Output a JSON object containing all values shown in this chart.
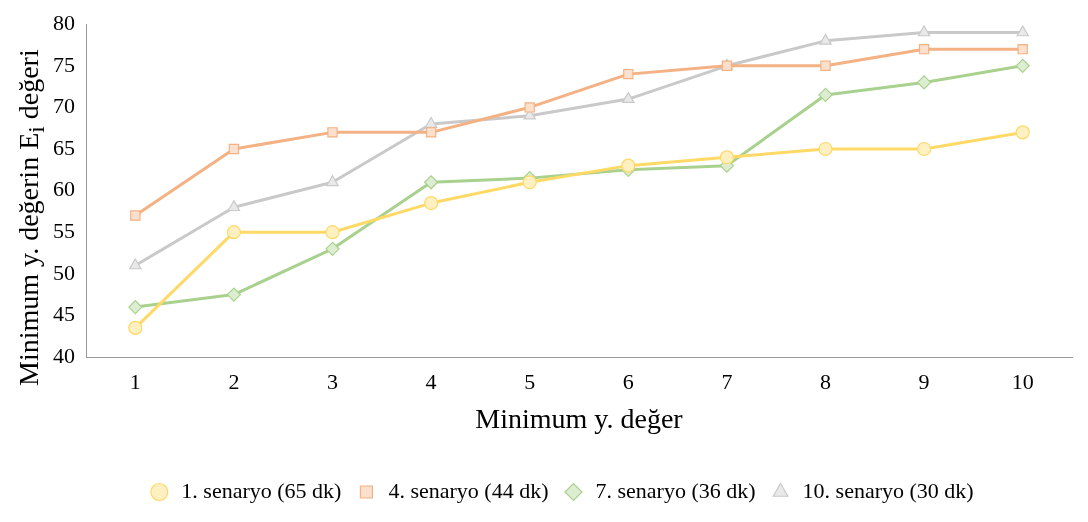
{
  "chart_data": {
    "type": "line",
    "xlabel": "Minimum y. değer",
    "ylabel": "Minimum y. değerin E$_{i}$ değeri",
    "categories": [
      "1",
      "2",
      "3",
      "4",
      "5",
      "6",
      "7",
      "8",
      "9",
      "10"
    ],
    "ylim": [
      40,
      80
    ],
    "yticks": [
      40,
      45,
      50,
      55,
      60,
      65,
      70,
      75,
      80
    ],
    "grid": false,
    "legend": "bottom",
    "line_style": "solid",
    "series": [
      {
        "name": "1. senaryo (65 dk)",
        "color": "#ffd966",
        "marker": "circle",
        "values": [
          43.5,
          55,
          55,
          58.5,
          61,
          63,
          64,
          65,
          65,
          67
        ]
      },
      {
        "name": "4. senaryo (44 dk)",
        "color": "#f4b183",
        "marker": "square",
        "values": [
          57,
          65,
          67,
          67,
          70,
          74,
          75,
          75,
          77,
          77
        ]
      },
      {
        "name": "7. senaryo (36 dk)",
        "color": "#a9d18e",
        "marker": "diamond",
        "values": [
          46,
          47.5,
          53,
          61,
          61.5,
          62.5,
          63,
          71.5,
          73,
          75
        ]
      },
      {
        "name": "10. senaryo (30 dk)",
        "color": "#c9c9c9",
        "marker": "triangle",
        "values": [
          51,
          58,
          61,
          68,
          69,
          71,
          75,
          78,
          79,
          79
        ]
      }
    ]
  }
}
